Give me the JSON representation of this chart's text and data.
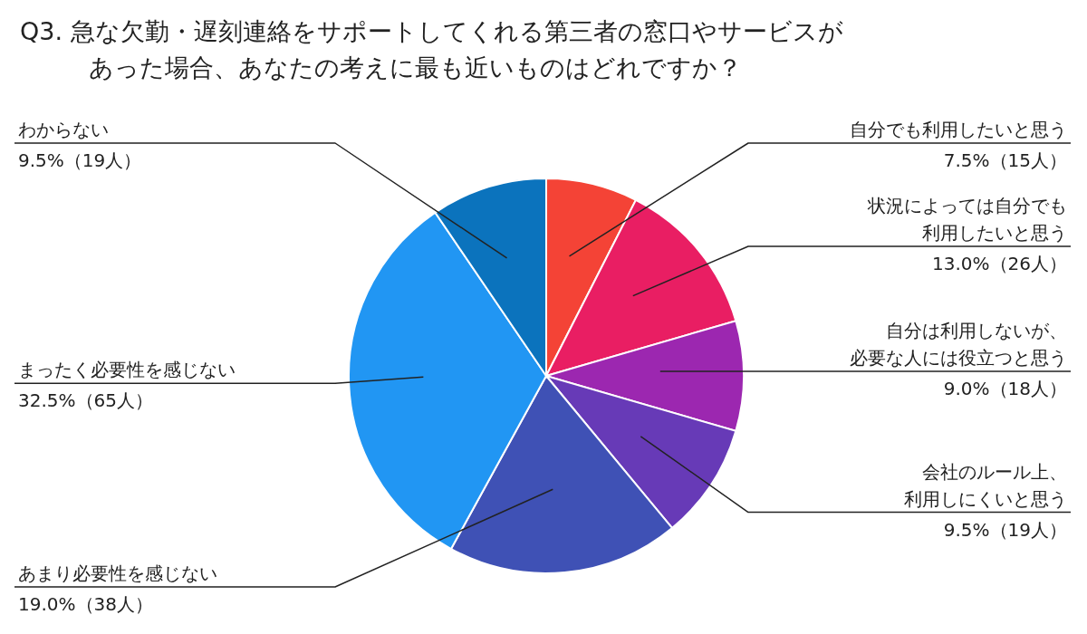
{
  "chart_data": {
    "type": "pie",
    "title": "Q3. 急な欠勤・遅刻連絡をサポートしてくれる第三者の窓口やサービスがあった場合、あなたの考えに最も近いものはどれですか？",
    "categories": [
      "自分でも利用したいと思う",
      "状況によっては自分でも利用したいと思う",
      "自分は利用しないが、必要な人には役立つと思う",
      "会社のルール上、利用しにくいと思う",
      "あまり必要性を感じない",
      "まったく必要性を感じない",
      "わからない"
    ],
    "values": [
      7.5,
      13.0,
      9.0,
      9.5,
      19.0,
      32.5,
      9.5
    ],
    "colors": [
      "#f44336",
      "#e91e63",
      "#9c27b0",
      "#673ab7",
      "#3f51b5",
      "#2196f3",
      "#0b73bd"
    ],
    "value_labels": [
      "7.5%（15人）",
      "13.0%（26人）",
      "9.0%（18人）",
      "9.5%（19人）",
      "19.0%（38人）",
      "32.5%（65人）",
      "9.5%（19人）"
    ]
  }
}
